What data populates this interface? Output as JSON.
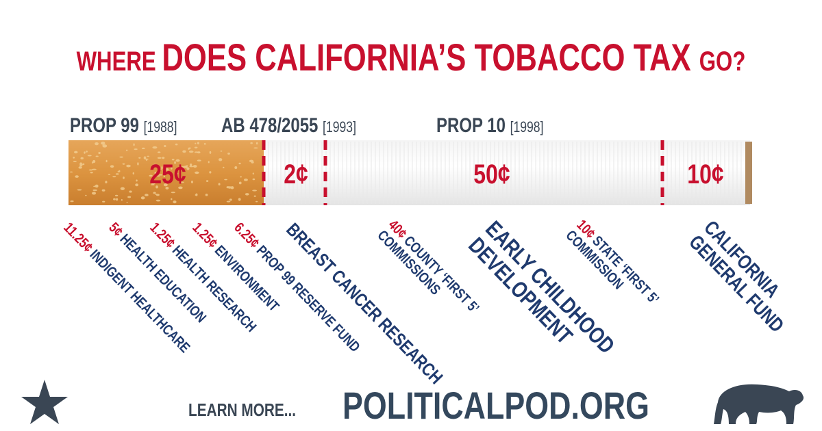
{
  "title": {
    "parts": [
      "WHERE ",
      "DOES CALIFORNIA’S ",
      "TOBACCO TAX ",
      "GO?"
    ]
  },
  "laws": [
    {
      "name": "PROP 99 ",
      "year": "[1988]"
    },
    {
      "name": "AB 478/2055 ",
      "year": "[1993]"
    },
    {
      "name": "PROP 10 ",
      "year": "[1998]"
    }
  ],
  "segments": [
    "25¢",
    "2¢",
    "50¢",
    "10¢"
  ],
  "allocations": [
    {
      "amount": "11.25¢ ",
      "lines": [
        "INDIGENT HEALTHCARE"
      ]
    },
    {
      "amount": "5¢ ",
      "lines": [
        "HEALTH EDUCATION"
      ]
    },
    {
      "amount": "1.25¢ ",
      "lines": [
        "HEALTH RESEARCH"
      ]
    },
    {
      "amount": "1.25¢ ",
      "lines": [
        "ENVIRONMENT"
      ]
    },
    {
      "amount": "6.25¢ ",
      "lines": [
        "PROP 99 RESERVE FUND"
      ]
    },
    {
      "lines": [
        "BREAST CANCER RESEARCH"
      ]
    },
    {
      "amount": "40¢ ",
      "lines": [
        "COUNTY ‘FIRST 5’",
        "COMMISSIONS"
      ]
    },
    {
      "lines": [
        "EARLY CHILDHOOD",
        "DEVELOPMENT"
      ]
    },
    {
      "amount": "10¢ ",
      "lines": [
        "STATE ‘FIRST 5’",
        "COMMISSION"
      ]
    },
    {
      "lines": [
        "CALIFORNIA",
        "GENERAL FUND"
      ]
    }
  ],
  "footer": {
    "prompt": "LEARN MORE...",
    "site": "POLITICALPOD.ORG"
  }
}
